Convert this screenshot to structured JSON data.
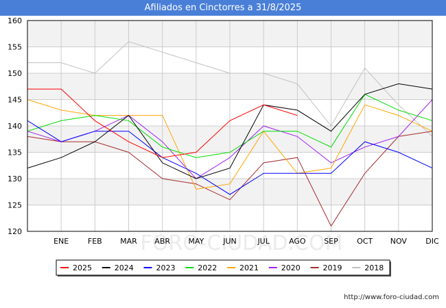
{
  "header": {
    "title": "Afiliados en Cinctorres a 31/8/2025"
  },
  "footer": {
    "url": "http://www.foro-ciudad.com"
  },
  "watermark": "FORO-CIUDAD.COM",
  "colors": {
    "title_bg": "#4a7fd8",
    "band": "#f2f2f2",
    "grid": "#cccccc"
  },
  "chart_data": {
    "type": "line",
    "title": "Afiliados en Cinctorres a 31/8/2025",
    "xlabel": "",
    "ylabel": "",
    "ylim": [
      120,
      160
    ],
    "yticks": [
      120,
      125,
      130,
      135,
      140,
      145,
      150,
      155,
      160
    ],
    "grid": true,
    "legend_position": "bottom",
    "categories": [
      "",
      "ENE",
      "FEB",
      "MAR",
      "ABR",
      "MAY",
      "JUN",
      "JUL",
      "AGO",
      "SEP",
      "OCT",
      "NOV",
      "DIC"
    ],
    "series": [
      {
        "name": "2025",
        "color": "#ff0000",
        "values": [
          147,
          147,
          141,
          137,
          134,
          135,
          141,
          144,
          142,
          null,
          null,
          null,
          null
        ]
      },
      {
        "name": "2024",
        "color": "#000000",
        "values": [
          132,
          134,
          137,
          142,
          133,
          130,
          132,
          144,
          143,
          139,
          146,
          148,
          147
        ]
      },
      {
        "name": "2023",
        "color": "#0000ff",
        "values": [
          141,
          137,
          139,
          139,
          134,
          131,
          127,
          131,
          131,
          131,
          137,
          135,
          132
        ]
      },
      {
        "name": "2022",
        "color": "#00dd00",
        "values": [
          139,
          141,
          142,
          141,
          136,
          134,
          135,
          139,
          139,
          136,
          146,
          143,
          141
        ]
      },
      {
        "name": "2021",
        "color": "#ffa500",
        "values": [
          145,
          143,
          142,
          142,
          142,
          128,
          129,
          139,
          131,
          132,
          144,
          142,
          139
        ]
      },
      {
        "name": "2020",
        "color": "#a020f0",
        "values": [
          139,
          137,
          139,
          142,
          137,
          130,
          134,
          140,
          138,
          133,
          136,
          138,
          145
        ]
      },
      {
        "name": "2019",
        "color": "#a52a2a",
        "values": [
          138,
          137,
          137,
          135,
          130,
          129,
          126,
          133,
          134,
          121,
          131,
          138,
          139
        ]
      },
      {
        "name": "2018",
        "color": "#c0c0c0",
        "values": [
          152,
          152,
          150,
          156,
          154,
          152,
          150,
          150,
          148,
          140,
          151,
          144,
          138
        ]
      }
    ]
  }
}
